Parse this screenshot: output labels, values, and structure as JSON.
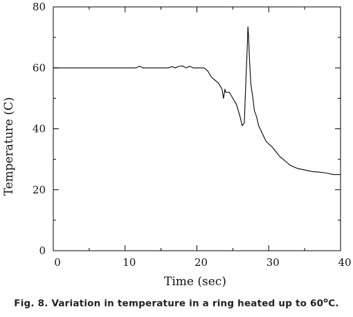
{
  "chart_data": {
    "type": "line",
    "title": "Fig. 8. Variation in temperature in a ring heated up to 60",
    "title_degree": "o",
    "title_suffix": "C.",
    "xlabel": "Time (sec)",
    "ylabel": "Temperature (C)",
    "xlim": [
      0,
      40
    ],
    "ylim": [
      0,
      80
    ],
    "xticks": [
      0,
      10,
      20,
      30,
      40
    ],
    "yticks": [
      0,
      20,
      40,
      60,
      80
    ],
    "grid": false,
    "series": [
      {
        "x": [
          0,
          5,
          10,
          11.5,
          12,
          12.5,
          13,
          16,
          16.5,
          17,
          17.5,
          18,
          18.5,
          19,
          19.5,
          20,
          21,
          21.5,
          22,
          22.5,
          23,
          23.5,
          23.7,
          23.9,
          24,
          24.5,
          25,
          25.5,
          26,
          26.3,
          26.6,
          26.8,
          27,
          27.1,
          27.2,
          27.3,
          27.5,
          27.8,
          28,
          28.3,
          28.6,
          29,
          29.3,
          29.6,
          30,
          30.5,
          31,
          31.5,
          32,
          32.5,
          33,
          33.5,
          34,
          35,
          36,
          37,
          38,
          39,
          40
        ],
        "y": [
          60,
          60,
          60,
          60,
          60.5,
          60,
          60,
          60,
          60.4,
          60,
          60.5,
          60.6,
          60,
          60.5,
          60,
          60,
          60,
          59,
          57,
          56,
          55,
          53,
          50,
          53,
          52,
          52,
          50,
          48,
          44,
          41,
          42,
          55,
          66,
          73.5,
          70,
          64,
          55,
          50,
          46,
          44,
          41,
          39,
          37.5,
          36,
          35,
          34,
          32.5,
          31,
          30,
          29,
          28,
          27.5,
          27,
          26.5,
          26,
          25.8,
          25.5,
          25,
          25
        ]
      }
    ]
  }
}
